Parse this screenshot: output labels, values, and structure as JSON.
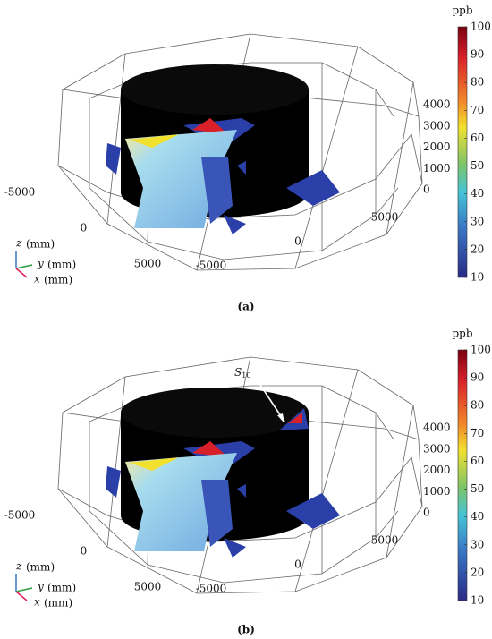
{
  "panels": [
    {
      "label": "(a)",
      "colorbar": {
        "unit": "ppb",
        "range": [
          10,
          100
        ],
        "ticks": [
          10,
          20,
          30,
          40,
          50,
          60,
          70,
          80,
          90,
          100
        ]
      },
      "axes": {
        "x_ticks": [
          -5000,
          0,
          5000
        ],
        "y_ticks": [
          -5000,
          0,
          5000
        ],
        "z_ticks": [
          0,
          1000,
          2000,
          3000,
          4000
        ]
      },
      "triad": {
        "z": "z",
        "y": "y",
        "x": "x",
        "unit": "(mm)"
      }
    },
    {
      "label": "(b)",
      "colorbar": {
        "unit": "ppb",
        "range": [
          10,
          100
        ],
        "ticks": [
          10,
          20,
          30,
          40,
          50,
          60,
          70,
          80,
          90,
          100
        ]
      },
      "axes": {
        "x_ticks": [
          -5000,
          0,
          5000
        ],
        "y_ticks": [
          -5000,
          0,
          5000
        ],
        "z_ticks": [
          0,
          1000,
          2000,
          3000,
          4000
        ]
      },
      "triad": {
        "z": "z",
        "y": "y",
        "x": "x",
        "unit": "(mm)"
      },
      "annotation": {
        "symbol": "S",
        "subscript": "10"
      }
    }
  ]
}
